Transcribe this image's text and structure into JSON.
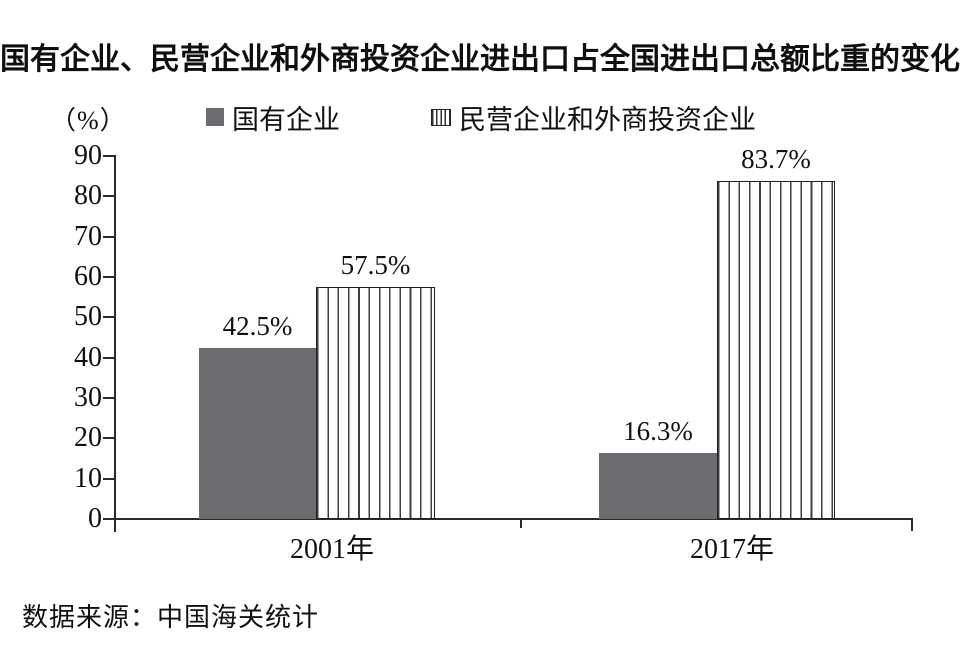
{
  "page": {
    "background": "#ffffff"
  },
  "chart_data": {
    "type": "bar",
    "title": "国有企业、民营企业和外商投资企业进出口占全国进出口总额比重的变化",
    "ylabel": "（%）",
    "xlabel": "",
    "categories": [
      "2001年",
      "2017年"
    ],
    "series": [
      {
        "name": "国有企业",
        "style": "solid",
        "color": "#6b6c70",
        "values": [
          42.5,
          16.3
        ]
      },
      {
        "name": "民营企业和外商投资企业",
        "style": "striped-vertical",
        "color": "#3f3f3f",
        "values": [
          57.5,
          83.7
        ]
      }
    ],
    "value_labels": [
      [
        "42.5%",
        "57.5%"
      ],
      [
        "16.3%",
        "83.7%"
      ]
    ],
    "yticks": [
      0,
      10,
      20,
      30,
      40,
      50,
      60,
      70,
      80,
      90
    ],
    "ylim": [
      0,
      90
    ],
    "grid": false,
    "legend_position": "top",
    "source": "数据来源：中国海关统计"
  },
  "colors": {
    "solid_bar": "#6b6c70",
    "stripe_line": "#3f3f3f",
    "axis": "#2a2a2a",
    "text": "#111111"
  }
}
